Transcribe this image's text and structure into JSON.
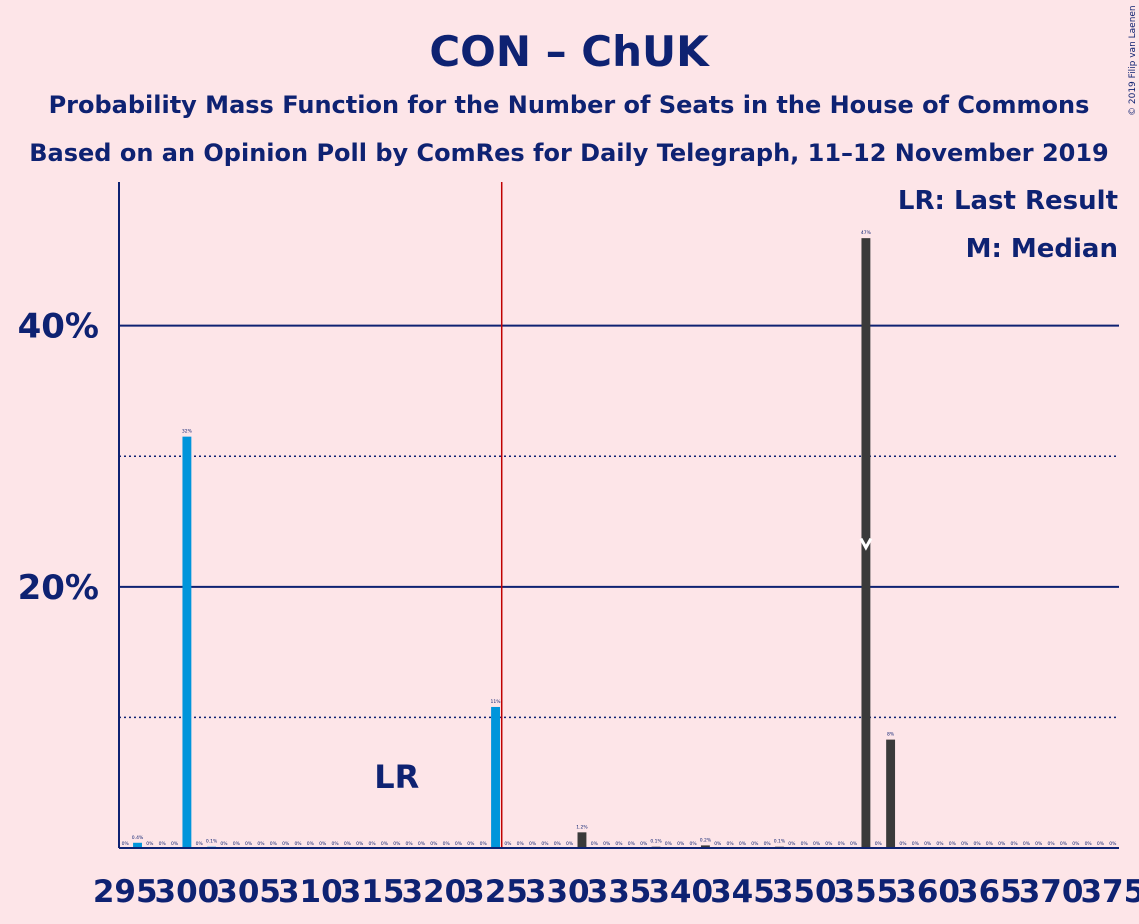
{
  "chart_data": {
    "type": "bar",
    "title": "CON – ChUK",
    "subtitle": "Probability Mass Function for the Number of Seats in the House of Commons",
    "subtitle2": "Based on an Opinion Poll by ComRes for Daily Telegraph, 11–12 November 2019",
    "copyright": "© 2019 Filip van Laenen",
    "legend": {
      "lr": "LR: Last Result",
      "median": "M: Median",
      "placement": "top-right"
    },
    "y_ticks": [
      {
        "value": 20,
        "label": "20%"
      },
      {
        "value": 40,
        "label": "40%"
      }
    ],
    "ylim": [
      0,
      51
    ],
    "xlim": [
      294.5,
      375.5
    ],
    "x_tick_labels": [
      "295",
      "300",
      "305",
      "310",
      "315",
      "320",
      "325",
      "330",
      "335",
      "340",
      "345",
      "350",
      "355",
      "360",
      "365",
      "370",
      "375"
    ],
    "x_tick_values": [
      295,
      300,
      305,
      310,
      315,
      320,
      325,
      330,
      335,
      340,
      345,
      350,
      355,
      360,
      365,
      370,
      375
    ],
    "last_result": {
      "seats": 317,
      "label": "LR"
    },
    "majority_line": 326,
    "median": {
      "seats": 355,
      "label": "M"
    },
    "series": [
      {
        "values": [
          {
            "x": 295,
            "y": 0,
            "label": "0%"
          },
          {
            "x": 296,
            "y": 0.4,
            "label": "0.4%"
          },
          {
            "x": 297,
            "y": 0,
            "label": "0%"
          },
          {
            "x": 298,
            "y": 0,
            "label": "0%"
          },
          {
            "x": 299,
            "y": 0,
            "label": "0%"
          },
          {
            "x": 300,
            "y": 31.5,
            "label": "32%"
          },
          {
            "x": 301,
            "y": 0,
            "label": "0%"
          },
          {
            "x": 302,
            "y": 0.1,
            "label": "0.1%"
          },
          {
            "x": 303,
            "y": 0,
            "label": "0%"
          },
          {
            "x": 304,
            "y": 0,
            "label": "0%"
          },
          {
            "x": 305,
            "y": 0,
            "label": "0%"
          },
          {
            "x": 306,
            "y": 0,
            "label": "0%"
          },
          {
            "x": 307,
            "y": 0,
            "label": "0%"
          },
          {
            "x": 308,
            "y": 0,
            "label": "0%"
          },
          {
            "x": 309,
            "y": 0,
            "label": "0%"
          },
          {
            "x": 310,
            "y": 0,
            "label": "0%"
          },
          {
            "x": 311,
            "y": 0,
            "label": "0%"
          },
          {
            "x": 312,
            "y": 0,
            "label": "0%"
          },
          {
            "x": 313,
            "y": 0,
            "label": "0%"
          },
          {
            "x": 314,
            "y": 0,
            "label": "0%"
          },
          {
            "x": 315,
            "y": 0,
            "label": "0%"
          },
          {
            "x": 316,
            "y": 0,
            "label": "0%"
          },
          {
            "x": 317,
            "y": 0,
            "label": "0%"
          },
          {
            "x": 318,
            "y": 0,
            "label": "0%"
          },
          {
            "x": 319,
            "y": 0,
            "label": "0%"
          },
          {
            "x": 320,
            "y": 0,
            "label": "0%"
          },
          {
            "x": 321,
            "y": 0,
            "label": "0%"
          },
          {
            "x": 322,
            "y": 0,
            "label": "0%"
          },
          {
            "x": 323,
            "y": 0,
            "label": "0%"
          },
          {
            "x": 324,
            "y": 0,
            "label": "0%"
          },
          {
            "x": 325,
            "y": 10.8,
            "label": "11%"
          },
          {
            "x": 326,
            "y": 0,
            "label": "0%"
          },
          {
            "x": 327,
            "y": 0,
            "label": "0%"
          },
          {
            "x": 328,
            "y": 0,
            "label": "0%"
          },
          {
            "x": 329,
            "y": 0,
            "label": "0%"
          },
          {
            "x": 330,
            "y": 0,
            "label": "0%"
          },
          {
            "x": 331,
            "y": 0,
            "label": "0%"
          },
          {
            "x": 332,
            "y": 1.2,
            "label": "1.2%"
          },
          {
            "x": 333,
            "y": 0,
            "label": "0%"
          },
          {
            "x": 334,
            "y": 0,
            "label": "0%"
          },
          {
            "x": 335,
            "y": 0,
            "label": "0%"
          },
          {
            "x": 336,
            "y": 0,
            "label": "0%"
          },
          {
            "x": 337,
            "y": 0,
            "label": "0%"
          },
          {
            "x": 338,
            "y": 0.1,
            "label": "0.1%"
          },
          {
            "x": 339,
            "y": 0,
            "label": "0%"
          },
          {
            "x": 340,
            "y": 0,
            "label": "0%"
          },
          {
            "x": 341,
            "y": 0,
            "label": "0%"
          },
          {
            "x": 342,
            "y": 0.2,
            "label": "0.2%"
          },
          {
            "x": 343,
            "y": 0,
            "label": "0%"
          },
          {
            "x": 344,
            "y": 0,
            "label": "0%"
          },
          {
            "x": 345,
            "y": 0,
            "label": "0%"
          },
          {
            "x": 346,
            "y": 0,
            "label": "0%"
          },
          {
            "x": 347,
            "y": 0,
            "label": "0%"
          },
          {
            "x": 348,
            "y": 0.1,
            "label": "0.1%"
          },
          {
            "x": 349,
            "y": 0,
            "label": "0%"
          },
          {
            "x": 350,
            "y": 0,
            "label": "0%"
          },
          {
            "x": 351,
            "y": 0,
            "label": "0%"
          },
          {
            "x": 352,
            "y": 0,
            "label": "0%"
          },
          {
            "x": 353,
            "y": 0,
            "label": "0%"
          },
          {
            "x": 354,
            "y": 0,
            "label": "0%"
          },
          {
            "x": 355,
            "y": 46.7,
            "label": "47%"
          },
          {
            "x": 356,
            "y": 0,
            "label": "0%"
          },
          {
            "x": 357,
            "y": 8.3,
            "label": "8%"
          },
          {
            "x": 358,
            "y": 0,
            "label": "0%"
          },
          {
            "x": 359,
            "y": 0,
            "label": "0%"
          },
          {
            "x": 360,
            "y": 0,
            "label": "0%"
          },
          {
            "x": 361,
            "y": 0,
            "label": "0%"
          },
          {
            "x": 362,
            "y": 0,
            "label": "0%"
          },
          {
            "x": 363,
            "y": 0,
            "label": "0%"
          },
          {
            "x": 364,
            "y": 0,
            "label": "0%"
          },
          {
            "x": 365,
            "y": 0,
            "label": "0%"
          },
          {
            "x": 366,
            "y": 0,
            "label": "0%"
          },
          {
            "x": 367,
            "y": 0,
            "label": "0%"
          },
          {
            "x": 368,
            "y": 0,
            "label": "0%"
          },
          {
            "x": 369,
            "y": 0,
            "label": "0%"
          },
          {
            "x": 370,
            "y": 0,
            "label": "0%"
          },
          {
            "x": 371,
            "y": 0,
            "label": "0%"
          },
          {
            "x": 372,
            "y": 0,
            "label": "0%"
          },
          {
            "x": 373,
            "y": 0,
            "label": "0%"
          },
          {
            "x": 374,
            "y": 0,
            "label": "0%"
          },
          {
            "x": 375,
            "y": 0,
            "label": "0%"
          }
        ]
      }
    ],
    "grid": {
      "solid": [
        20,
        40
      ],
      "dotted": [
        10,
        30
      ]
    },
    "colors": {
      "background": "#FDE5E8",
      "text": "#0E2272",
      "bar_below_majority": "#0095DB",
      "bar_at_or_above_majority": "#3A3A3A",
      "majority_line": "#C00000"
    }
  }
}
